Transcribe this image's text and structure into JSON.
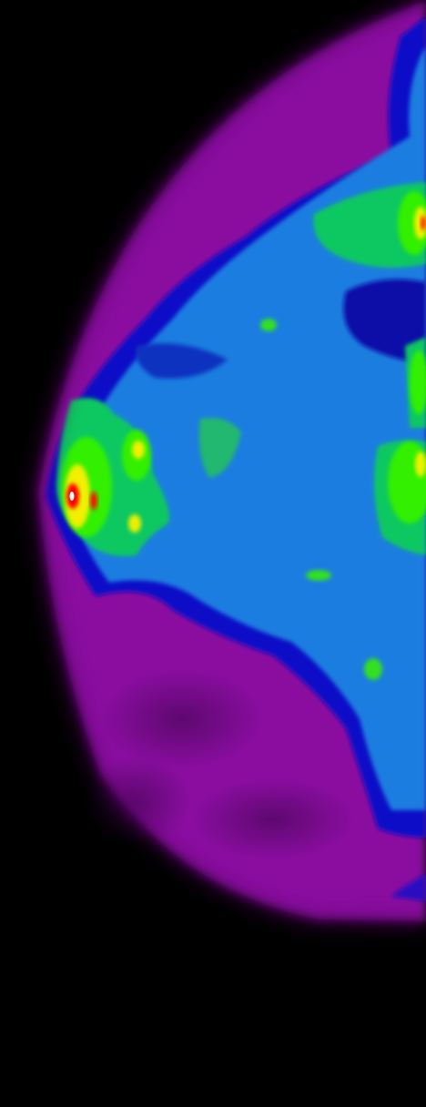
{
  "image": {
    "kind": "false-color density heat map",
    "colors": {
      "background": "#000000",
      "outer_tissue": "#8a0aa0",
      "low": "#0a10c8",
      "low_mid": "#1a7de0",
      "mid": "#10c860",
      "high": "#30f000",
      "higher": "#f0f000",
      "peak": "#ff0000",
      "max": "#ffffff"
    }
  }
}
